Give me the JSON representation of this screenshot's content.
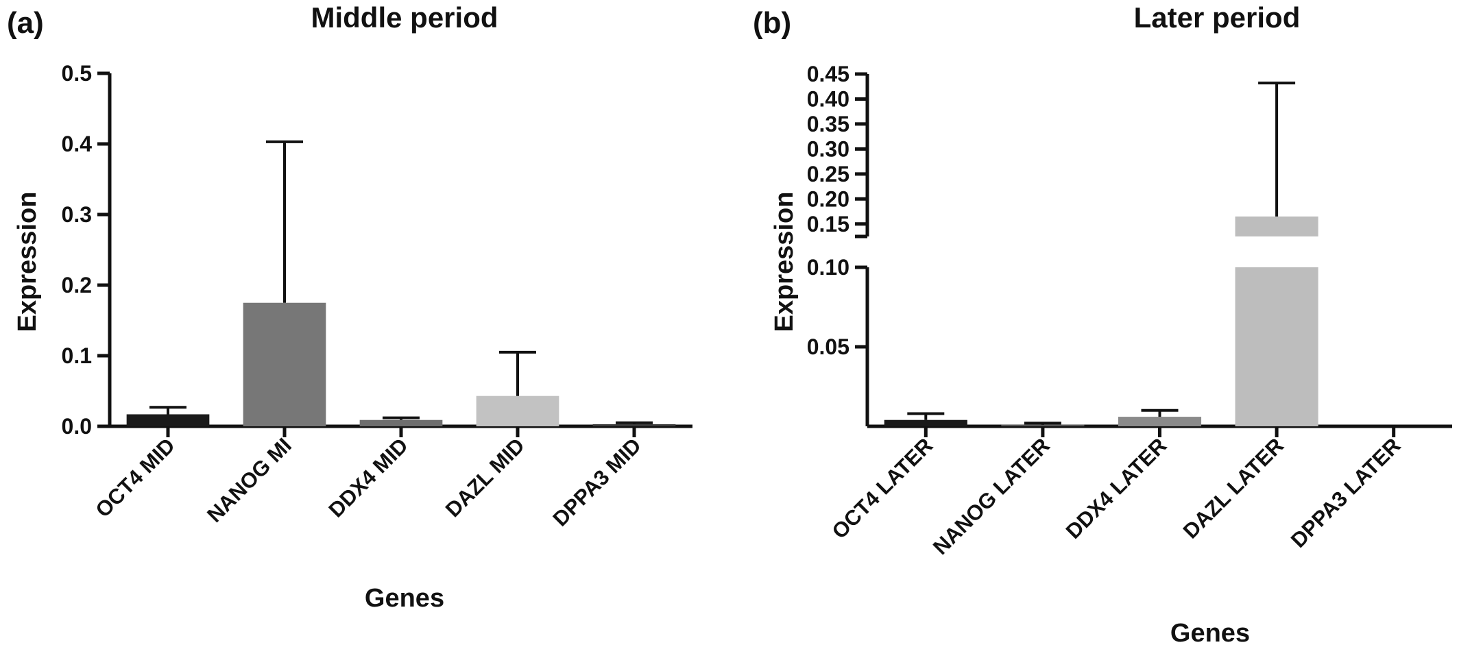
{
  "chart_data": [
    {
      "panel": "(a)",
      "type": "bar",
      "title": "Middle period",
      "xlabel": "Genes",
      "ylabel": "Expression",
      "ylim": [
        0,
        0.5
      ],
      "yticks": [
        "0.0",
        "0.1",
        "0.2",
        "0.3",
        "0.4",
        "0.5"
      ],
      "categories": [
        "OCT4 MID",
        "NANOG MI",
        "DDX4 MID",
        "DAZL MID",
        "DPPA3 MID"
      ],
      "values": [
        0.017,
        0.175,
        0.009,
        0.043,
        0.003
      ],
      "errors": [
        0.027,
        0.403,
        0.012,
        0.105,
        0.005
      ],
      "colors": [
        "#1a1a1a",
        "#777777",
        "#6e6e6e",
        "#c2c2c2",
        "#3a3a3a"
      ],
      "grid": false
    },
    {
      "panel": "(b)",
      "type": "bar",
      "title": "Later period",
      "xlabel": "Genes",
      "ylabel": "Expression",
      "ylim": [
        0,
        0.45
      ],
      "axis_break": [
        0.1,
        0.125
      ],
      "yticks": [
        "0.05",
        "0.10",
        "0.15",
        "0.20",
        "0.25",
        "0.30",
        "0.35",
        "0.40",
        "0.45"
      ],
      "categories": [
        "OCT4 LATER",
        "NANOG LATER",
        "DDX4 LATER",
        "DAZL LATER",
        "DPPA3 LATER"
      ],
      "values": [
        0.004,
        0.001,
        0.006,
        0.165,
        0.0
      ],
      "errors": [
        0.008,
        0.002,
        0.01,
        0.432,
        0.0
      ],
      "colors": [
        "#1a1a1a",
        "#555555",
        "#8a8a8a",
        "#bdbdbd",
        "#444444"
      ],
      "grid": false
    }
  ]
}
